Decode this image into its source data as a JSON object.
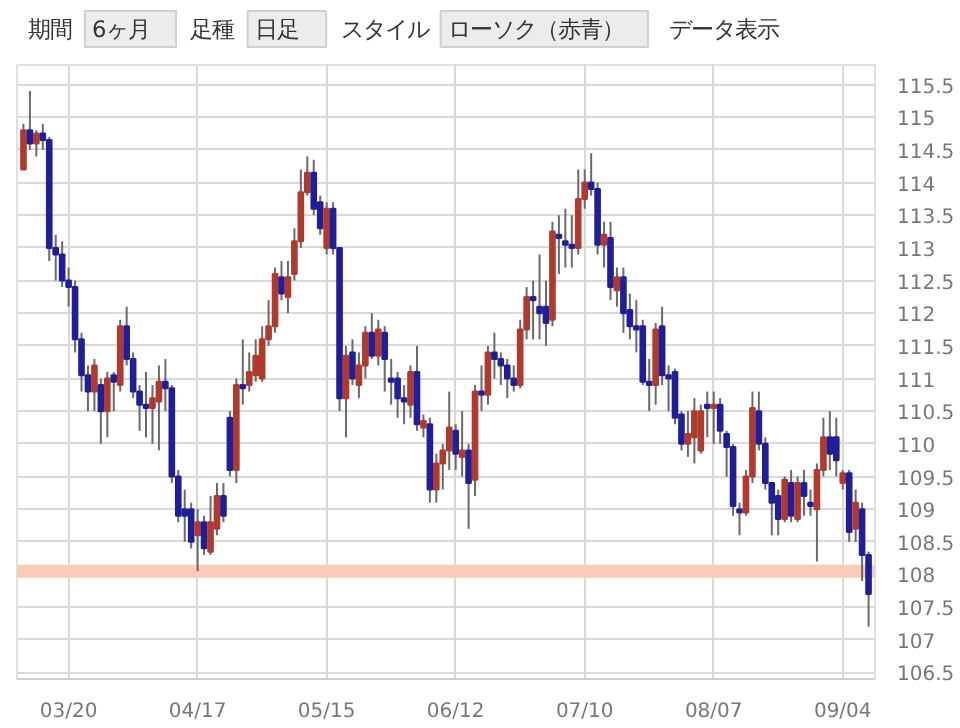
{
  "chart_data": {
    "type": "candlestick",
    "annotations": [
      "期間",
      "6ヶ月",
      "足種",
      "日足",
      "スタイル",
      "ローソク（赤青）",
      "データ表示"
    ],
    "categories": [
      null,
      null,
      null,
      null,
      null,
      null,
      null,
      "03/20",
      null,
      null,
      null,
      null,
      null,
      null,
      null,
      null,
      null,
      null,
      null,
      null,
      null,
      null,
      null,
      null,
      null,
      null,
      null,
      "04/17",
      null,
      null,
      null,
      null,
      null,
      null,
      null,
      null,
      null,
      null,
      null,
      null,
      null,
      null,
      null,
      null,
      null,
      null,
      null,
      "05/15",
      null,
      null,
      null,
      null,
      null,
      null,
      null,
      null,
      null,
      null,
      null,
      null,
      null,
      null,
      null,
      null,
      null,
      null,
      null,
      "06/12",
      null,
      null,
      null,
      null,
      null,
      null,
      null,
      null,
      null,
      null,
      null,
      null,
      null,
      null,
      null,
      null,
      null,
      null,
      null,
      "07/10",
      null,
      null,
      null,
      null,
      null,
      null,
      null,
      null,
      null,
      null,
      null,
      null,
      null,
      null,
      null,
      null,
      null,
      null,
      null,
      "08/07",
      null,
      null,
      null,
      null,
      null,
      null,
      null,
      null,
      null,
      null,
      null,
      null,
      null,
      null,
      null,
      null,
      null,
      null,
      null,
      "09/04",
      null,
      null,
      null,
      null
    ],
    "ohlc": [
      [
        114.2,
        114.9,
        114.2,
        114.8
      ],
      [
        114.8,
        115.4,
        114.5,
        114.6
      ],
      [
        114.6,
        114.8,
        114.4,
        114.75
      ],
      [
        114.75,
        114.9,
        114.5,
        114.65
      ],
      [
        114.65,
        114.7,
        112.8,
        113.0
      ],
      [
        113.0,
        113.2,
        112.5,
        112.9
      ],
      [
        112.9,
        113.1,
        112.4,
        112.5
      ],
      [
        112.5,
        112.7,
        112.1,
        112.4
      ],
      [
        112.4,
        112.5,
        111.4,
        111.6
      ],
      [
        111.6,
        111.7,
        110.8,
        111.05
      ],
      [
        111.05,
        111.2,
        110.5,
        110.8
      ],
      [
        110.8,
        111.3,
        110.5,
        111.2
      ],
      [
        110.9,
        111.0,
        110.0,
        110.5
      ],
      [
        110.5,
        111.1,
        110.1,
        111.0
      ],
      [
        111.05,
        111.1,
        110.5,
        110.95
      ],
      [
        110.9,
        111.9,
        110.8,
        111.8
      ],
      [
        111.8,
        112.1,
        111.2,
        111.3
      ],
      [
        111.3,
        111.4,
        110.7,
        110.8
      ],
      [
        110.8,
        110.9,
        110.2,
        110.6
      ],
      [
        110.6,
        111.1,
        110.1,
        110.55
      ],
      [
        110.55,
        110.9,
        110.0,
        110.7
      ],
      [
        110.65,
        111.2,
        109.9,
        110.95
      ],
      [
        110.95,
        111.3,
        110.5,
        110.85
      ],
      [
        110.85,
        110.9,
        109.4,
        109.5
      ],
      [
        109.5,
        109.6,
        108.8,
        108.9
      ],
      [
        109.0,
        109.3,
        108.5,
        108.9
      ],
      [
        109.0,
        109.1,
        108.4,
        108.5
      ],
      [
        108.6,
        109.0,
        108.05,
        108.8
      ],
      [
        108.8,
        108.9,
        108.3,
        108.4
      ],
      [
        108.35,
        109.2,
        108.3,
        108.8
      ],
      [
        108.7,
        109.4,
        108.6,
        109.2
      ],
      [
        109.2,
        109.4,
        108.8,
        108.9
      ],
      [
        110.4,
        110.5,
        109.5,
        109.6
      ],
      [
        109.6,
        111.0,
        109.4,
        110.9
      ],
      [
        110.9,
        111.6,
        110.6,
        110.85
      ],
      [
        110.9,
        111.4,
        110.8,
        111.1
      ],
      [
        111.05,
        111.6,
        110.95,
        111.35
      ],
      [
        111.0,
        111.8,
        110.95,
        111.6
      ],
      [
        111.6,
        112.2,
        111.5,
        111.8
      ],
      [
        111.8,
        112.7,
        111.7,
        112.6
      ],
      [
        112.55,
        112.8,
        112.2,
        112.3
      ],
      [
        112.25,
        112.8,
        112.0,
        112.55
      ],
      [
        112.6,
        113.3,
        112.5,
        113.1
      ],
      [
        113.1,
        114.2,
        113.0,
        113.85
      ],
      [
        113.85,
        114.4,
        113.8,
        114.15
      ],
      [
        114.15,
        114.35,
        113.5,
        113.6
      ],
      [
        113.7,
        113.8,
        113.2,
        113.3
      ],
      [
        113.0,
        113.7,
        112.9,
        113.6
      ],
      [
        113.6,
        113.7,
        112.9,
        113.0
      ],
      [
        113.0,
        113.0,
        110.5,
        110.7
      ],
      [
        110.7,
        111.5,
        110.1,
        111.35
      ],
      [
        111.4,
        111.6,
        110.9,
        111.0
      ],
      [
        110.9,
        111.4,
        110.7,
        111.2
      ],
      [
        111.2,
        111.8,
        111.0,
        111.7
      ],
      [
        111.7,
        112.0,
        111.3,
        111.35
      ],
      [
        111.35,
        111.9,
        111.2,
        111.75
      ],
      [
        111.7,
        111.8,
        110.8,
        111.3
      ],
      [
        111.0,
        111.3,
        110.6,
        110.95
      ],
      [
        111.0,
        111.1,
        110.4,
        110.7
      ],
      [
        110.7,
        110.9,
        110.3,
        110.65
      ],
      [
        110.6,
        111.2,
        110.4,
        111.1
      ],
      [
        111.1,
        111.5,
        110.2,
        110.3
      ],
      [
        110.25,
        110.45,
        110.1,
        110.35
      ],
      [
        110.3,
        110.4,
        109.1,
        109.3
      ],
      [
        109.3,
        109.85,
        109.1,
        109.7
      ],
      [
        109.7,
        110.0,
        109.3,
        109.9
      ],
      [
        109.9,
        110.8,
        109.6,
        110.25
      ],
      [
        110.2,
        110.3,
        109.6,
        109.85
      ],
      [
        109.8,
        110.5,
        109.5,
        109.9
      ],
      [
        109.9,
        110.0,
        108.7,
        109.4
      ],
      [
        109.45,
        110.9,
        109.2,
        110.8
      ],
      [
        110.8,
        111.2,
        110.5,
        110.75
      ],
      [
        110.75,
        111.5,
        110.6,
        111.4
      ],
      [
        111.4,
        111.7,
        111.0,
        111.3
      ],
      [
        111.3,
        111.4,
        110.9,
        111.2
      ],
      [
        111.2,
        111.3,
        110.7,
        111.0
      ],
      [
        111.0,
        111.2,
        110.8,
        110.9
      ],
      [
        110.9,
        111.9,
        110.85,
        111.75
      ],
      [
        111.75,
        112.4,
        111.6,
        112.25
      ],
      [
        112.25,
        112.5,
        111.6,
        112.2
      ],
      [
        112.1,
        112.9,
        111.6,
        112.0
      ],
      [
        112.1,
        112.5,
        111.5,
        111.85
      ],
      [
        111.9,
        113.4,
        111.8,
        113.25
      ],
      [
        113.2,
        113.5,
        112.6,
        113.15
      ],
      [
        113.1,
        113.6,
        112.7,
        113.05
      ],
      [
        113.05,
        113.5,
        112.7,
        113.0
      ],
      [
        113.0,
        114.2,
        112.9,
        113.75
      ],
      [
        113.75,
        114.2,
        113.6,
        114.0
      ],
      [
        114.0,
        114.45,
        113.8,
        113.9
      ],
      [
        113.9,
        114.0,
        112.9,
        113.05
      ],
      [
        113.05,
        113.4,
        112.7,
        113.2
      ],
      [
        113.15,
        113.4,
        112.2,
        112.4
      ],
      [
        112.35,
        112.7,
        112.1,
        112.55
      ],
      [
        112.55,
        112.7,
        111.7,
        112.0
      ],
      [
        112.05,
        112.3,
        111.6,
        111.8
      ],
      [
        111.8,
        112.2,
        111.4,
        111.75
      ],
      [
        111.8,
        111.9,
        110.9,
        110.95
      ],
      [
        110.95,
        111.3,
        110.5,
        110.9
      ],
      [
        110.9,
        111.85,
        110.6,
        111.75
      ],
      [
        111.8,
        112.1,
        110.9,
        111.05
      ],
      [
        111.05,
        111.2,
        110.5,
        111.0
      ],
      [
        111.1,
        111.15,
        110.3,
        110.4
      ],
      [
        110.45,
        110.5,
        109.9,
        110.0
      ],
      [
        110.0,
        110.5,
        109.8,
        110.15
      ],
      [
        110.1,
        110.7,
        109.7,
        110.5
      ],
      [
        109.9,
        110.6,
        109.85,
        110.5
      ],
      [
        110.6,
        110.8,
        110.1,
        110.55
      ],
      [
        110.55,
        110.8,
        110.0,
        110.6
      ],
      [
        110.6,
        110.7,
        110.0,
        110.2
      ],
      [
        110.15,
        110.2,
        109.5,
        109.95
      ],
      [
        109.95,
        110.0,
        108.9,
        109.05
      ],
      [
        109.0,
        109.1,
        108.6,
        108.95
      ],
      [
        108.95,
        109.6,
        108.9,
        109.5
      ],
      [
        109.5,
        110.8,
        109.4,
        110.55
      ],
      [
        110.5,
        110.8,
        109.9,
        110.0
      ],
      [
        110.0,
        110.1,
        109.3,
        109.4
      ],
      [
        109.4,
        109.4,
        108.6,
        109.1
      ],
      [
        109.2,
        109.3,
        108.6,
        108.85
      ],
      [
        108.85,
        109.5,
        108.8,
        109.45
      ],
      [
        109.4,
        109.6,
        108.8,
        108.9
      ],
      [
        108.85,
        109.5,
        108.8,
        109.4
      ],
      [
        109.4,
        109.6,
        108.9,
        109.2
      ],
      [
        109.1,
        109.3,
        108.9,
        109.05
      ],
      [
        109.0,
        109.7,
        108.2,
        109.6
      ],
      [
        109.6,
        110.4,
        109.5,
        110.1
      ],
      [
        110.1,
        110.5,
        109.6,
        109.85
      ],
      [
        110.1,
        110.4,
        109.5,
        109.75
      ],
      [
        109.4,
        109.6,
        109.3,
        109.55
      ],
      [
        109.55,
        109.6,
        108.5,
        108.65
      ],
      [
        108.7,
        109.3,
        108.5,
        109.1
      ],
      [
        109.0,
        109.1,
        107.9,
        108.3
      ],
      [
        108.3,
        108.35,
        107.2,
        107.7
      ]
    ],
    "colors": [
      "#b03a2e",
      "#1f1f9a",
      "#b03a2e",
      "#1f1f9a",
      "#1f1f9a",
      "#1f1f9a",
      "#1f1f9a",
      "#1f1f9a",
      "#1f1f9a",
      "#1f1f9a",
      "#1f1f9a",
      "#b03a2e",
      "#1f1f9a",
      "#b03a2e",
      "#1f1f9a",
      "#b03a2e",
      "#1f1f9a",
      "#1f1f9a",
      "#1f1f9a",
      "#1f1f9a",
      "#b03a2e",
      "#b03a2e",
      "#1f1f9a",
      "#1f1f9a",
      "#1f1f9a",
      "#1f1f9a",
      "#1f1f9a",
      "#b03a2e",
      "#1f1f9a",
      "#b03a2e",
      "#b03a2e",
      "#1f1f9a",
      "#1f1f9a",
      "#b03a2e",
      "#1f1f9a",
      "#b03a2e",
      "#b03a2e",
      "#b03a2e",
      "#b03a2e",
      "#b03a2e",
      "#1f1f9a",
      "#b03a2e",
      "#b03a2e",
      "#b03a2e",
      "#b03a2e",
      "#1f1f9a",
      "#1f1f9a",
      "#b03a2e",
      "#1f1f9a",
      "#1f1f9a",
      "#b03a2e",
      "#1f1f9a",
      "#b03a2e",
      "#b03a2e",
      "#1f1f9a",
      "#b03a2e",
      "#1f1f9a",
      "#1f1f9a",
      "#1f1f9a",
      "#1f1f9a",
      "#b03a2e",
      "#1f1f9a",
      "#b03a2e",
      "#1f1f9a",
      "#b03a2e",
      "#b03a2e",
      "#b03a2e",
      "#1f1f9a",
      "#b03a2e",
      "#1f1f9a",
      "#b03a2e",
      "#1f1f9a",
      "#b03a2e",
      "#1f1f9a",
      "#1f1f9a",
      "#1f1f9a",
      "#1f1f9a",
      "#b03a2e",
      "#b03a2e",
      "#1f1f9a",
      "#1f1f9a",
      "#1f1f9a",
      "#b03a2e",
      "#1f1f9a",
      "#1f1f9a",
      "#1f1f9a",
      "#b03a2e",
      "#b03a2e",
      "#1f1f9a",
      "#1f1f9a",
      "#b03a2e",
      "#1f1f9a",
      "#b03a2e",
      "#1f1f9a",
      "#1f1f9a",
      "#1f1f9a",
      "#1f1f9a",
      "#1f1f9a",
      "#b03a2e",
      "#1f1f9a",
      "#1f1f9a",
      "#1f1f9a",
      "#1f1f9a",
      "#b03a2e",
      "#b03a2e",
      "#b03a2e",
      "#1f1f9a",
      "#b03a2e",
      "#1f1f9a",
      "#1f1f9a",
      "#1f1f9a",
      "#1f1f9a",
      "#b03a2e",
      "#b03a2e",
      "#1f1f9a",
      "#1f1f9a",
      "#1f1f9a",
      "#1f1f9a",
      "#b03a2e",
      "#1f1f9a",
      "#b03a2e",
      "#1f1f9a",
      "#1f1f9a",
      "#b03a2e",
      "#b03a2e",
      "#1f1f9a",
      "#1f1f9a",
      "#b03a2e",
      "#1f1f9a",
      "#b03a2e",
      "#1f1f9a",
      "#1f1f9a"
    ],
    "ylim": [
      106.4,
      115.8
    ],
    "yticks": [
      106.5,
      107,
      107.5,
      108,
      108.5,
      109,
      109.5,
      110,
      110.5,
      111,
      111.5,
      112,
      112.5,
      113,
      113.5,
      114,
      114.5,
      115,
      115.5
    ],
    "grid": true,
    "bands": [
      {
        "axis": "y",
        "from": 107.95,
        "to": 108.15,
        "color": "#f9cbb8"
      }
    ]
  }
}
